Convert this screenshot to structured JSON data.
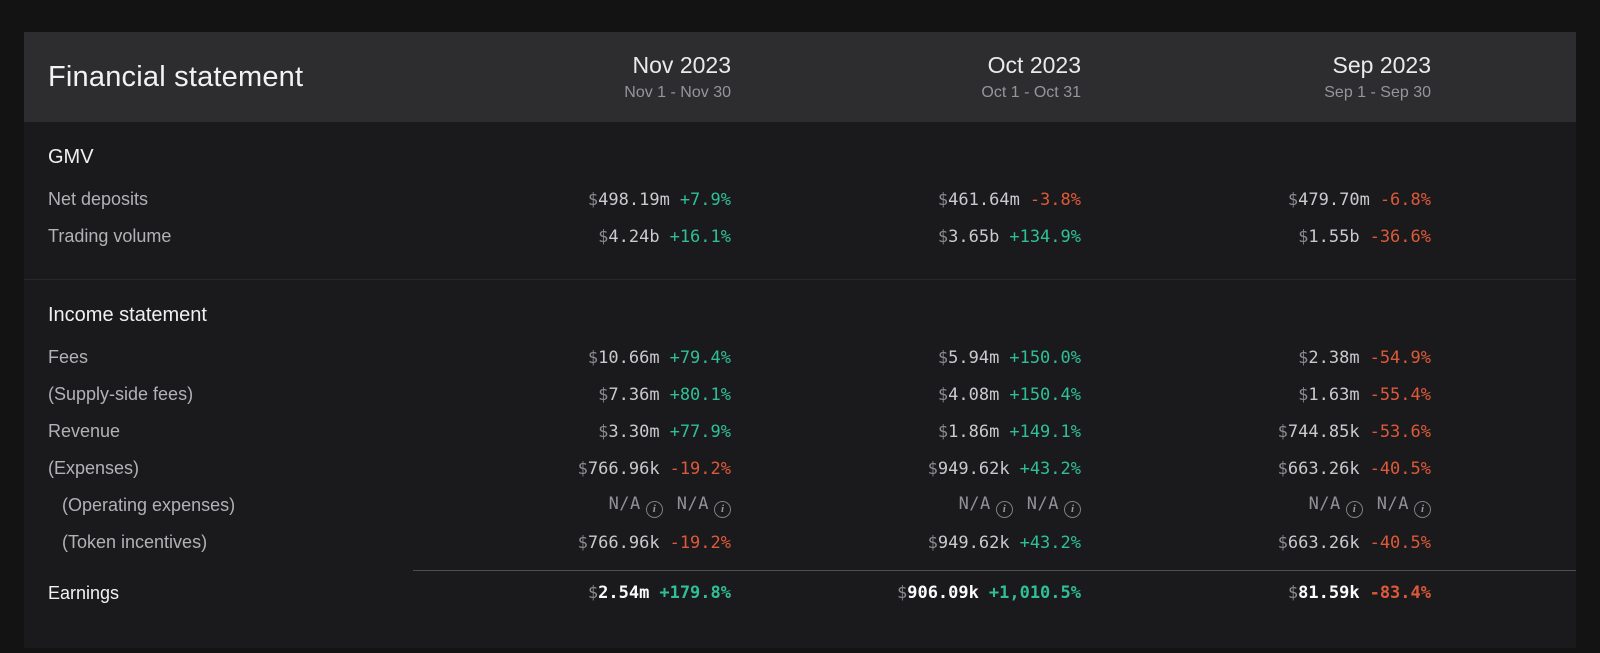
{
  "header": {
    "title": "Financial statement",
    "columns": [
      {
        "label": "Nov 2023",
        "range": "Nov 1 - Nov 30"
      },
      {
        "label": "Oct 2023",
        "range": "Oct 1 - Oct 31"
      },
      {
        "label": "Sep 2023",
        "range": "Sep 1 - Sep 30"
      }
    ]
  },
  "na_label": "N/A",
  "colors": {
    "positive": "#2fbf97",
    "negative": "#dd5939",
    "card_background": "#1a1a1c",
    "header_background": "#2d2d30"
  },
  "sections": [
    {
      "title": "GMV",
      "rows": [
        {
          "label": "Net deposits",
          "indent": false,
          "emphasis": false,
          "divider_above": false,
          "cells": [
            {
              "type": "value",
              "amount": "498.19m",
              "change": "+7.9%",
              "direction": "up"
            },
            {
              "type": "value",
              "amount": "461.64m",
              "change": "-3.8%",
              "direction": "down"
            },
            {
              "type": "value",
              "amount": "479.70m",
              "change": "-6.8%",
              "direction": "down"
            }
          ]
        },
        {
          "label": "Trading volume",
          "indent": false,
          "emphasis": false,
          "divider_above": false,
          "cells": [
            {
              "type": "value",
              "amount": "4.24b",
              "change": "+16.1%",
              "direction": "up"
            },
            {
              "type": "value",
              "amount": "3.65b",
              "change": "+134.9%",
              "direction": "up"
            },
            {
              "type": "value",
              "amount": "1.55b",
              "change": "-36.6%",
              "direction": "down"
            }
          ]
        }
      ]
    },
    {
      "title": "Income statement",
      "rows": [
        {
          "label": "Fees",
          "indent": false,
          "emphasis": false,
          "divider_above": false,
          "cells": [
            {
              "type": "value",
              "amount": "10.66m",
              "change": "+79.4%",
              "direction": "up"
            },
            {
              "type": "value",
              "amount": "5.94m",
              "change": "+150.0%",
              "direction": "up"
            },
            {
              "type": "value",
              "amount": "2.38m",
              "change": "-54.9%",
              "direction": "down"
            }
          ]
        },
        {
          "label": "(Supply-side fees)",
          "indent": false,
          "emphasis": false,
          "divider_above": false,
          "cells": [
            {
              "type": "value",
              "amount": "7.36m",
              "change": "+80.1%",
              "direction": "up"
            },
            {
              "type": "value",
              "amount": "4.08m",
              "change": "+150.4%",
              "direction": "up"
            },
            {
              "type": "value",
              "amount": "1.63m",
              "change": "-55.4%",
              "direction": "down"
            }
          ]
        },
        {
          "label": "Revenue",
          "indent": false,
          "emphasis": false,
          "divider_above": false,
          "cells": [
            {
              "type": "value",
              "amount": "3.30m",
              "change": "+77.9%",
              "direction": "up"
            },
            {
              "type": "value",
              "amount": "1.86m",
              "change": "+149.1%",
              "direction": "up"
            },
            {
              "type": "value",
              "amount": "744.85k",
              "change": "-53.6%",
              "direction": "down"
            }
          ]
        },
        {
          "label": "(Expenses)",
          "indent": false,
          "emphasis": false,
          "divider_above": false,
          "cells": [
            {
              "type": "value",
              "amount": "766.96k",
              "change": "-19.2%",
              "direction": "down"
            },
            {
              "type": "value",
              "amount": "949.62k",
              "change": "+43.2%",
              "direction": "up"
            },
            {
              "type": "value",
              "amount": "663.26k",
              "change": "-40.5%",
              "direction": "down"
            }
          ]
        },
        {
          "label": "(Operating expenses)",
          "indent": true,
          "emphasis": false,
          "divider_above": false,
          "cells": [
            {
              "type": "na"
            },
            {
              "type": "na"
            },
            {
              "type": "na"
            }
          ]
        },
        {
          "label": "(Token incentives)",
          "indent": true,
          "emphasis": false,
          "divider_above": false,
          "cells": [
            {
              "type": "value",
              "amount": "766.96k",
              "change": "-19.2%",
              "direction": "down"
            },
            {
              "type": "value",
              "amount": "949.62k",
              "change": "+43.2%",
              "direction": "up"
            },
            {
              "type": "value",
              "amount": "663.26k",
              "change": "-40.5%",
              "direction": "down"
            }
          ]
        },
        {
          "label": "Earnings",
          "indent": false,
          "emphasis": true,
          "divider_above": true,
          "cells": [
            {
              "type": "value",
              "amount": "2.54m",
              "change": "+179.8%",
              "direction": "up"
            },
            {
              "type": "value",
              "amount": "906.09k",
              "change": "+1,010.5%",
              "direction": "up"
            },
            {
              "type": "value",
              "amount": "81.59k",
              "change": "-83.4%",
              "direction": "down"
            }
          ]
        }
      ]
    }
  ]
}
